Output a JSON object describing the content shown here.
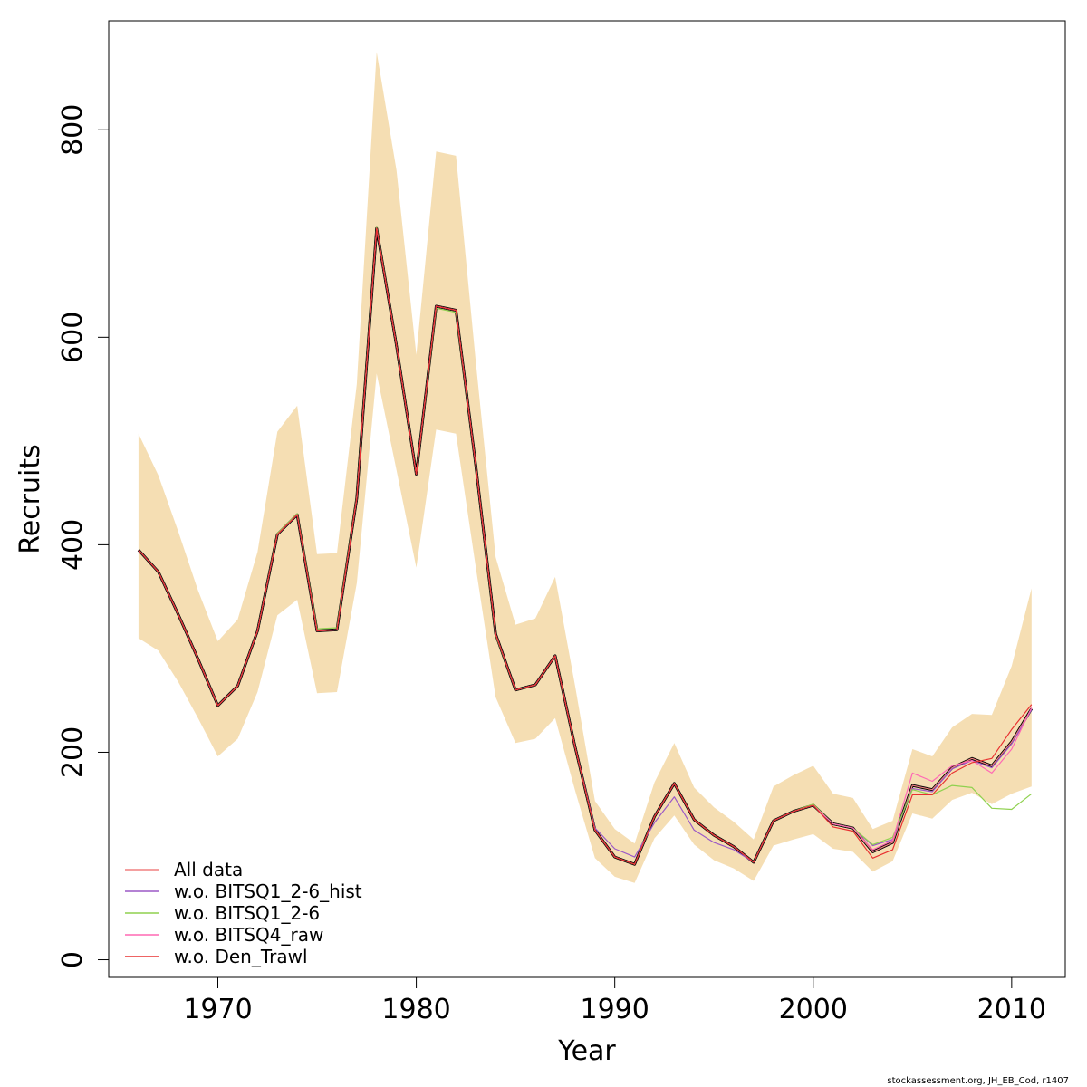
{
  "chart_data": {
    "type": "line",
    "xlabel": "Year",
    "ylabel": "Recruits",
    "xlim": [
      1964.5,
      2012.7
    ],
    "ylim": [
      -17,
      905
    ],
    "x_ticks": [
      1970,
      1980,
      1990,
      2000,
      2010
    ],
    "x_tick_labels": [
      "1970",
      "1980",
      "1990",
      "2000",
      "2010"
    ],
    "y_ticks": [
      0,
      200,
      400,
      600,
      800
    ],
    "y_tick_labels": [
      "0",
      "200",
      "400",
      "600",
      "800"
    ],
    "grid": false,
    "legend_position": "bottom-left",
    "x": [
      1966,
      1967,
      1968,
      1969,
      1970,
      1971,
      1972,
      1973,
      1974,
      1975,
      1976,
      1977,
      1978,
      1979,
      1980,
      1981,
      1982,
      1983,
      1984,
      1985,
      1986,
      1987,
      1988,
      1989,
      1990,
      1991,
      1992,
      1993,
      1994,
      1995,
      1996,
      1997,
      1998,
      1999,
      2000,
      2001,
      2002,
      2003,
      2004,
      2005,
      2006,
      2007,
      2008,
      2009,
      2010,
      2011
    ],
    "band": {
      "color": "#f5deb3",
      "lower": [
        310,
        298,
        268,
        233,
        196,
        213,
        258,
        332,
        347,
        257,
        258,
        363,
        565,
        472,
        378,
        511,
        507,
        378,
        253,
        209,
        213,
        233,
        163,
        98,
        80,
        74,
        117,
        139,
        111,
        96,
        88,
        76,
        110,
        116,
        121,
        107,
        104,
        85,
        95,
        141,
        136,
        154,
        161,
        150,
        160,
        167
      ],
      "upper": [
        507,
        467,
        413,
        356,
        307,
        328,
        393,
        509,
        534,
        391,
        392,
        555,
        875,
        761,
        583,
        779,
        775,
        576,
        388,
        323,
        329,
        369,
        264,
        153,
        126,
        112,
        171,
        209,
        166,
        147,
        133,
        116,
        167,
        178,
        187,
        160,
        156,
        126,
        134,
        203,
        196,
        224,
        237,
        236,
        283,
        358
      ]
    },
    "series": [
      {
        "name": "",
        "color": "#000000",
        "width": 3,
        "values": [
          395,
          374,
          333,
          290,
          245,
          264,
          317,
          410,
          429,
          317,
          318,
          445,
          705,
          592,
          468,
          630,
          626,
          476,
          314,
          260,
          265,
          293,
          205,
          125,
          99,
          92,
          138,
          170,
          135,
          120,
          109,
          94,
          134,
          143,
          149,
          131,
          127,
          104,
          113,
          168,
          164,
          185,
          194,
          187,
          210,
          242
        ]
      },
      {
        "name": "All data",
        "color": "#f08080",
        "width": 1.2,
        "values": [
          395,
          374,
          333,
          290,
          245,
          264,
          317,
          410,
          429,
          317,
          318,
          445,
          705,
          592,
          468,
          630,
          626,
          476,
          314,
          260,
          265,
          293,
          205,
          125,
          99,
          92,
          138,
          170,
          135,
          120,
          109,
          94,
          134,
          143,
          149,
          131,
          127,
          104,
          113,
          168,
          164,
          185,
          194,
          187,
          210,
          242
        ]
      },
      {
        "name": "w.o. BITSQ1_2-6_hist",
        "color": "#9b59c6",
        "width": 1.2,
        "values": [
          395,
          374,
          333,
          290,
          245,
          264,
          317,
          410,
          429,
          317,
          318,
          445,
          705,
          592,
          468,
          630,
          626,
          476,
          314,
          260,
          265,
          293,
          205,
          127,
          107,
          99,
          132,
          157,
          125,
          113,
          106,
          94,
          134,
          143,
          149,
          131,
          127,
          110,
          116,
          165,
          162,
          184,
          192,
          185,
          208,
          241
        ]
      },
      {
        "name": "w.o. BITSQ1_2-6",
        "color": "#8fd14f",
        "width": 1.2,
        "values": [
          395,
          374,
          333,
          290,
          245,
          264,
          317,
          411,
          430,
          319,
          320,
          446,
          706,
          592,
          468,
          628,
          624,
          476,
          313,
          260,
          265,
          293,
          205,
          125,
          99,
          92,
          138,
          170,
          135,
          120,
          109,
          94,
          134,
          143,
          150,
          131,
          127,
          111,
          118,
          164,
          159,
          168,
          166,
          146,
          145,
          160
        ]
      },
      {
        "name": "w.o. BITSQ4_raw",
        "color": "#ff69b4",
        "width": 1.2,
        "values": [
          395,
          374,
          333,
          290,
          245,
          264,
          317,
          410,
          429,
          317,
          318,
          445,
          705,
          592,
          468,
          630,
          626,
          476,
          314,
          260,
          265,
          293,
          205,
          125,
          99,
          92,
          138,
          170,
          135,
          120,
          109,
          94,
          134,
          143,
          149,
          131,
          127,
          106,
          115,
          180,
          172,
          187,
          192,
          180,
          203,
          243
        ]
      },
      {
        "name": "w.o. Den_Trawl",
        "color": "#e83030",
        "width": 1.2,
        "values": [
          395,
          374,
          333,
          290,
          245,
          264,
          317,
          410,
          429,
          317,
          318,
          445,
          705,
          592,
          468,
          630,
          626,
          476,
          314,
          260,
          265,
          293,
          205,
          125,
          99,
          92,
          138,
          170,
          135,
          120,
          109,
          94,
          134,
          143,
          149,
          128,
          124,
          98,
          106,
          159,
          159,
          180,
          190,
          194,
          222,
          246
        ]
      }
    ]
  },
  "credit": "stockassessment.org, JH_EB_Cod, r1407"
}
